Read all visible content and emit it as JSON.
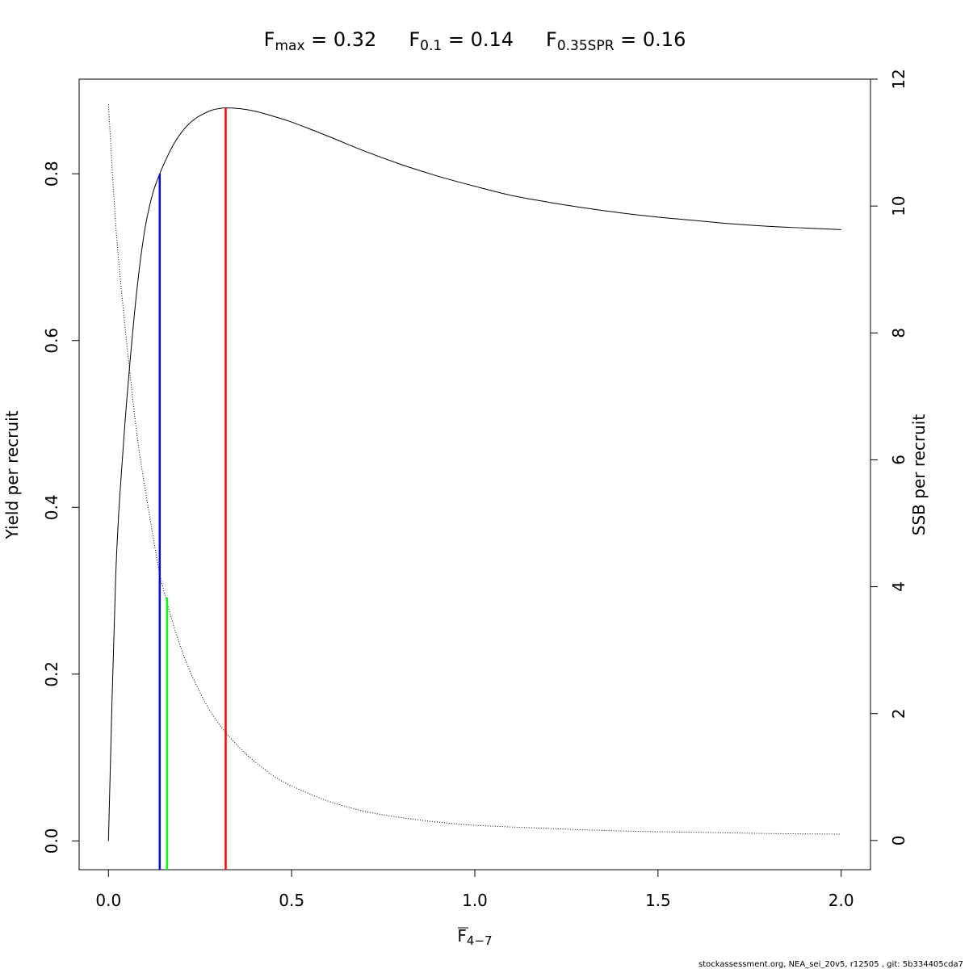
{
  "chart_data": {
    "type": "line",
    "title": {
      "fmax": {
        "label": "F",
        "sub": "max",
        "value": "0.32"
      },
      "f01": {
        "label": "F",
        "sub": "0.1",
        "value": "0.14"
      },
      "fspr": {
        "label": "F",
        "sub": "0.35SPR",
        "value": "0.16"
      }
    },
    "xlabel": {
      "main": "F",
      "sub": "4−7"
    },
    "ylabel_left": "Yield per recruit",
    "ylabel_right": "SSB per recruit",
    "xlim": [
      -0.08,
      2.08
    ],
    "ylim_left": [
      -0.0345,
      0.9135
    ],
    "ylim_right": [
      -0.46,
      12.0
    ],
    "xticks": [
      {
        "v": 0.0,
        "label": "0.0"
      },
      {
        "v": 0.5,
        "label": "0.5"
      },
      {
        "v": 1.0,
        "label": "1.0"
      },
      {
        "v": 1.5,
        "label": "1.5"
      },
      {
        "v": 2.0,
        "label": "2.0"
      }
    ],
    "yticks_left": [
      {
        "v": 0.0,
        "label": "0.0"
      },
      {
        "v": 0.2,
        "label": "0.2"
      },
      {
        "v": 0.4,
        "label": "0.4"
      },
      {
        "v": 0.6,
        "label": "0.6"
      },
      {
        "v": 0.8,
        "label": "0.8"
      }
    ],
    "yticks_right": [
      {
        "v": 0,
        "label": "0"
      },
      {
        "v": 2,
        "label": "2"
      },
      {
        "v": 4,
        "label": "4"
      },
      {
        "v": 6,
        "label": "6"
      },
      {
        "v": 8,
        "label": "8"
      },
      {
        "v": 10,
        "label": "10"
      },
      {
        "v": 12,
        "label": "12"
      }
    ],
    "series": [
      {
        "axis": "left",
        "style": "solid",
        "color": "#000000",
        "x": [
          0,
          0.02,
          0.04,
          0.06,
          0.08,
          0.1,
          0.12,
          0.14,
          0.16,
          0.18,
          0.2,
          0.22,
          0.24,
          0.26,
          0.28,
          0.3,
          0.32,
          0.36,
          0.4,
          0.45,
          0.5,
          0.6,
          0.7,
          0.8,
          0.9,
          1.0,
          1.1,
          1.2,
          1.3,
          1.4,
          1.5,
          1.6,
          1.7,
          1.8,
          1.9,
          2.0
        ],
        "y": [
          0.0,
          0.32,
          0.47,
          0.58,
          0.67,
          0.735,
          0.775,
          0.8,
          0.82,
          0.837,
          0.85,
          0.86,
          0.867,
          0.872,
          0.876,
          0.878,
          0.879,
          0.878,
          0.875,
          0.869,
          0.862,
          0.845,
          0.827,
          0.811,
          0.797,
          0.785,
          0.774,
          0.766,
          0.759,
          0.753,
          0.748,
          0.744,
          0.74,
          0.737,
          0.735,
          0.733
        ]
      },
      {
        "axis": "right",
        "style": "dotted",
        "color": "#000000",
        "x": [
          0,
          0.02,
          0.04,
          0.06,
          0.08,
          0.1,
          0.12,
          0.14,
          0.16,
          0.18,
          0.2,
          0.22,
          0.24,
          0.26,
          0.28,
          0.3,
          0.32,
          0.36,
          0.4,
          0.45,
          0.5,
          0.6,
          0.7,
          0.8,
          0.9,
          1.0,
          1.2,
          1.4,
          1.6,
          1.8,
          2.0
        ],
        "y": [
          11.6,
          9.7,
          8.4,
          7.3,
          6.3,
          5.55,
          4.85,
          4.2,
          3.75,
          3.35,
          3.0,
          2.7,
          2.45,
          2.22,
          2.02,
          1.85,
          1.7,
          1.45,
          1.24,
          1.02,
          0.86,
          0.62,
          0.46,
          0.36,
          0.29,
          0.24,
          0.19,
          0.15,
          0.13,
          0.11,
          0.1
        ]
      }
    ],
    "reference_lines": [
      {
        "name": "F0.1",
        "x": 0.14,
        "y_top": 0.8,
        "color": "#0000ff"
      },
      {
        "name": "F0.35SPR",
        "x": 0.16,
        "y_top": 0.292,
        "color": "#00ff00"
      },
      {
        "name": "Fmax",
        "x": 0.32,
        "y_top": 0.879,
        "color": "#ff0000"
      }
    ],
    "grid": false,
    "legend": "none"
  },
  "footer": "stockassessment.org, NEA_sei_20v5, r12505 , git: 5b334405cda7"
}
